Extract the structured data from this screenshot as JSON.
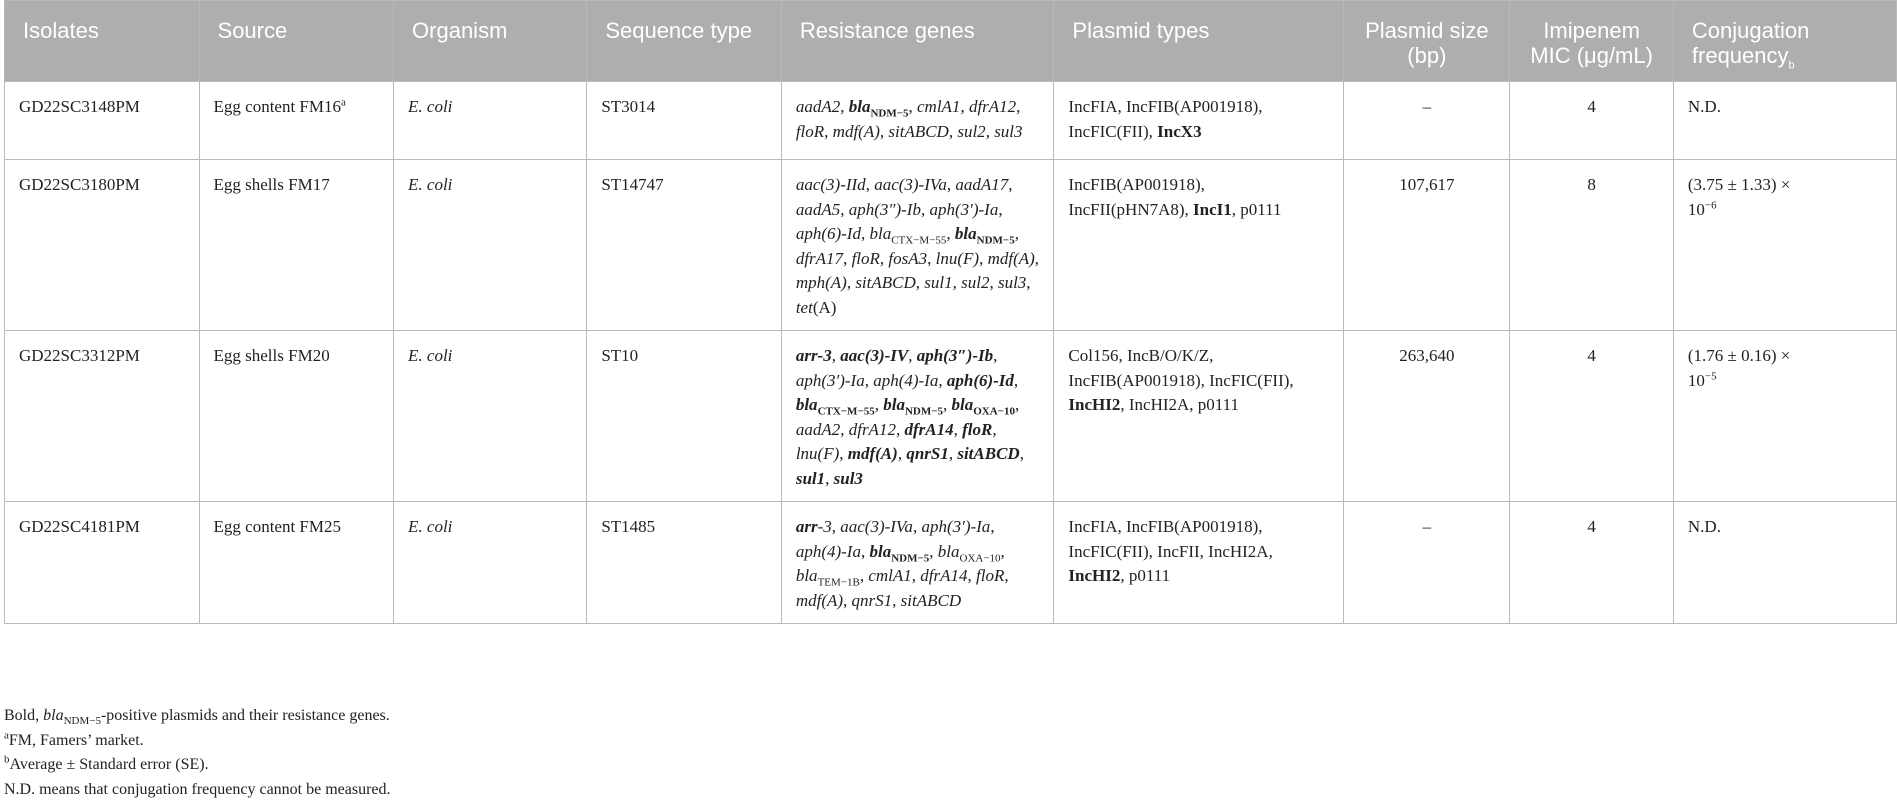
{
  "headers": {
    "isolates": "Isolates",
    "source": "Source",
    "organism": "Organism",
    "sequence_type": "Sequence type",
    "resistance_genes": "Resistance genes",
    "plasmid_types": "Plasmid types",
    "plasmid_size": "Plasmid size (bp)",
    "imipenem_mic": "Imipenem MIC (μg/mL)",
    "conjugation_frequency": "Conjugation frequency",
    "conjugation_frequency_sup": "b"
  },
  "rows": [
    {
      "isolate": "GD22SC3148PM",
      "source": "Egg content FM16",
      "source_sup": "a",
      "organism": "E. coli",
      "sequence_type": "ST3014",
      "plasmid_size": "–",
      "imipenem_mic": "4",
      "conjugation_frequency": "N.D."
    },
    {
      "isolate": "GD22SC3180PM",
      "source": "Egg shells FM17",
      "organism": "E. coli",
      "sequence_type": "ST14747",
      "plasmid_size": "107,617",
      "imipenem_mic": "8",
      "conjugation_frequency": "(3.75 ± 1.33) ×",
      "conjugation_frequency_power": "10",
      "conjugation_frequency_exp": "−6"
    },
    {
      "isolate": "GD22SC3312PM",
      "source": "Egg shells FM20",
      "organism": "E. coli",
      "sequence_type": "ST10",
      "plasmid_size": "263,640",
      "imipenem_mic": "4",
      "conjugation_frequency": "(1.76 ± 0.16) ×",
      "conjugation_frequency_power": "10",
      "conjugation_frequency_exp": "−5"
    },
    {
      "isolate": "GD22SC4181PM",
      "source": "Egg content FM25",
      "organism": "E. coli",
      "sequence_type": "ST1485",
      "plasmid_size": "–",
      "imipenem_mic": "4",
      "conjugation_frequency": "N.D."
    }
  ],
  "genes": {
    "aadA2": "aadA2",
    "aadA5": "aadA5",
    "aadA17": "aadA17",
    "aac3IId": "aac(3)-IId",
    "aac3IVa": "aac(3)-IVa",
    "aac3IV": "aac(3)-IV",
    "aph3ppIb": "aph(3″)-Ib",
    "aph3pIa": "aph(3′)-Ia",
    "aph6Id": "aph(6)-Id",
    "aph4Ia": "aph(4)-Ia",
    "arr3": "arr-3",
    "arr": "arr",
    "dash3": "-3",
    "bla": "bla",
    "ndm5": "NDM−5",
    "ctxm55": "CTX−M−55",
    "oxa10": "OXA−10",
    "tem1b": "TEM−1B",
    "cmlA1": "cmlA1",
    "dfrA12": "dfrA12",
    "dfrA14": "dfrA14",
    "dfrA17": "dfrA17",
    "floR": "floR",
    "fosA3": "fosA3",
    "lnuF": "lnu(F)",
    "mdfA": "mdf(A)",
    "mphA": "mph(A)",
    "qnrS1": "qnrS1",
    "sitABCD": "sitABCD",
    "sul1": "sul1",
    "sul2": "sul2",
    "sul3": "sul3",
    "tet": "tet",
    "tetA": "(A)"
  },
  "plasmids": {
    "IncFIA": "IncFIA",
    "IncFIB": "IncFIB(AP001918)",
    "IncFIC": "IncFIC(FII)",
    "IncFII": "IncFII",
    "IncFII_pHN": "IncFII(pHN7A8)",
    "IncX3": "IncX3",
    "IncI1": "IncI1",
    "IncHI2": "IncHI2",
    "IncHI2A": "IncHI2A",
    "p0111": "p0111",
    "Col156": "Col156",
    "IncBOKZ": "IncB/O/K/Z"
  },
  "footnotes": {
    "bold_prefix": "Bold, ",
    "bold_bla": "bla",
    "bold_sub": "NDM−5",
    "bold_rest": "-positive plasmids and their resistance genes.",
    "a_mark": "a",
    "a_text": "FM, Famers’ market.",
    "b_mark": "b",
    "b_text": "Average ± Standard error (SE).",
    "nd_text": "N.D. means that conjugation frequency cannot be measured."
  }
}
